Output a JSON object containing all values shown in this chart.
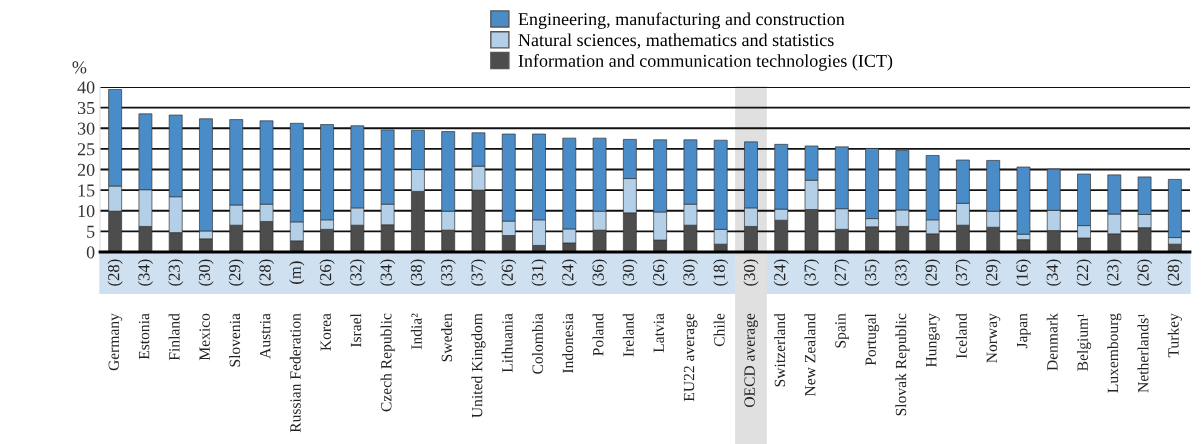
{
  "chart_data": {
    "type": "bar",
    "stacked": true,
    "ylabel": "%",
    "categories": [
      "Germany",
      "Estonia",
      "Finland",
      "Mexico",
      "Slovenia",
      "Austria",
      "Russian Federation",
      "Korea",
      "Israel",
      "Czech Republic",
      "India²",
      "Sweden",
      "United Kingdom",
      "Lithuania",
      "Colombia",
      "Indonesia",
      "Poland",
      "Ireland",
      "Latvia",
      "EU22 average",
      "Chile",
      "OECD average",
      "Switzerland",
      "New Zealand",
      "Spain",
      "Portugal",
      "Slovak Republic",
      "Hungary",
      "Iceland",
      "Norway",
      "Japan",
      "Denmark",
      "Belgium¹",
      "Luxembourg",
      "Netherlands¹",
      "Turkey"
    ],
    "series": [
      {
        "name": "Information and communication technologies (ICT)",
        "color": "#4d4d4d",
        "values": [
          9.9,
          6.2,
          4.7,
          3.2,
          6.5,
          7.4,
          2.7,
          5.5,
          6.5,
          6.6,
          14.7,
          5.3,
          15.0,
          4.0,
          1.6,
          2.2,
          5.3,
          9.5,
          2.9,
          6.5,
          1.9,
          6.2,
          7.7,
          10.3,
          5.5,
          6.1,
          6.2,
          4.4,
          6.5,
          6.0,
          3.0,
          5.2,
          3.4,
          4.4,
          5.9,
          1.9
        ]
      },
      {
        "name": "Natural sciences, mathematics and statistics",
        "color": "#b4d0e8",
        "values": [
          6.1,
          8.9,
          8.7,
          1.9,
          4.9,
          4.2,
          4.6,
          2.3,
          4.2,
          5.0,
          5.3,
          4.6,
          5.8,
          3.5,
          6.2,
          3.4,
          4.6,
          8.3,
          6.8,
          5.1,
          3.6,
          4.5,
          2.7,
          7.1,
          5.0,
          2.0,
          4.0,
          3.4,
          5.3,
          3.9,
          1.3,
          4.9,
          3.0,
          4.8,
          3.2,
          1.6
        ]
      },
      {
        "name": "Engineering, manufacturing and construction",
        "color": "#4a8cc7",
        "values": [
          23.4,
          18.4,
          19.8,
          27.2,
          20.7,
          20.2,
          23.9,
          23.1,
          19.9,
          18.0,
          9.5,
          19.3,
          8.1,
          21.1,
          20.8,
          22.0,
          17.7,
          9.5,
          17.5,
          15.6,
          21.6,
          16.0,
          15.7,
          8.3,
          15.0,
          17.0,
          14.4,
          15.6,
          10.5,
          12.3,
          16.3,
          10.0,
          12.5,
          9.5,
          9.1,
          14.1
        ]
      }
    ],
    "annotations": [
      "(28)",
      "(34)",
      "(23)",
      "(30)",
      "(29)",
      "(28)",
      "(m)",
      "(26)",
      "(32)",
      "(34)",
      "(38)",
      "(33)",
      "(37)",
      "(26)",
      "(31)",
      "(24)",
      "(36)",
      "(30)",
      "(26)",
      "(30)",
      "(18)",
      "(30)",
      "(24)",
      "(37)",
      "(27)",
      "(35)",
      "(33)",
      "(29)",
      "(37)",
      "(29)",
      "(16)",
      "(34)",
      "(22)",
      "(23)",
      "(26)",
      "(28)"
    ],
    "bands": [
      {
        "axis": "x",
        "from": "OECD average",
        "to": "OECD average",
        "color": "#e0e0e0"
      }
    ],
    "ylim": [
      0,
      40
    ],
    "yticks": [
      0,
      5,
      10,
      15,
      20,
      25,
      30,
      35,
      40
    ],
    "grid": "y",
    "legend": "top"
  }
}
